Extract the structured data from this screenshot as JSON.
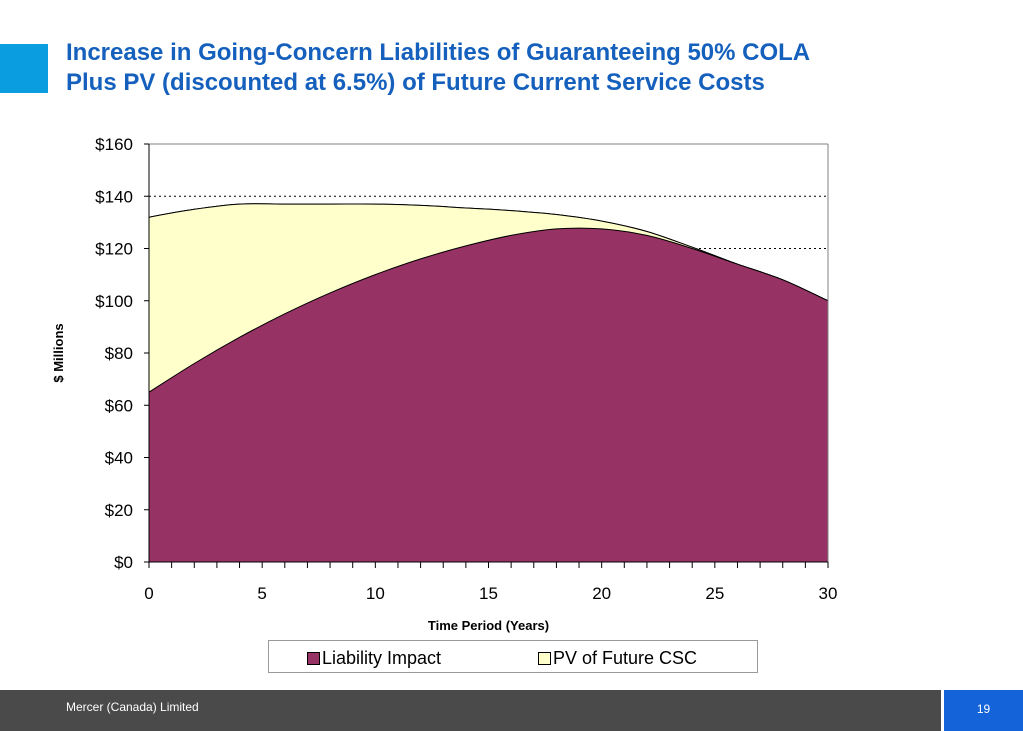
{
  "slide": {
    "title_line1": "Increase in Going-Concern Liabilities of Guaranteeing 50% COLA",
    "title_line2": "Plus PV (discounted at 6.5%) of Future Current Service Costs"
  },
  "footer": {
    "company": "Mercer (Canada) Limited",
    "page_number": "19"
  },
  "colors": {
    "accent": "#0a9de0",
    "title": "#1560bd",
    "liability": "#963264",
    "pv_csc": "#ffffcc",
    "footer_bg": "#4a4a4a",
    "page_box": "#1463d8"
  },
  "chart_data": {
    "type": "area",
    "stacked": true,
    "xlabel": "Time Period (Years)",
    "ylabel": "$ Millions",
    "xlim": [
      0,
      30
    ],
    "ylim": [
      0,
      160
    ],
    "x_ticks": [
      0,
      5,
      10,
      15,
      20,
      25,
      30
    ],
    "x_minor_step": 1,
    "y_ticks": [
      0,
      20,
      40,
      60,
      80,
      100,
      120,
      140,
      160
    ],
    "y_tick_labels": [
      "$0",
      "$20",
      "$40",
      "$60",
      "$80",
      "$100",
      "$120",
      "$140",
      "$160"
    ],
    "gridlines": "horizontal dotted",
    "legend_position": "bottom",
    "x": [
      0,
      2,
      4,
      6,
      8,
      10,
      12,
      14,
      16,
      18,
      20,
      22,
      24,
      26,
      28,
      30
    ],
    "series": [
      {
        "name": "Liability Impact",
        "color": "#963264",
        "values": [
          65,
          76,
          86,
          95,
          103,
          110,
          116,
          121,
          125,
          127.5,
          127.5,
          125,
          120,
          114,
          108,
          100
        ]
      },
      {
        "name": "PV of Future CSC",
        "color": "#ffffcc",
        "values": [
          67,
          59,
          51,
          42,
          34,
          27,
          20.5,
          14.5,
          9.5,
          5.5,
          3,
          1.5,
          0.5,
          0,
          0,
          0
        ]
      }
    ]
  }
}
